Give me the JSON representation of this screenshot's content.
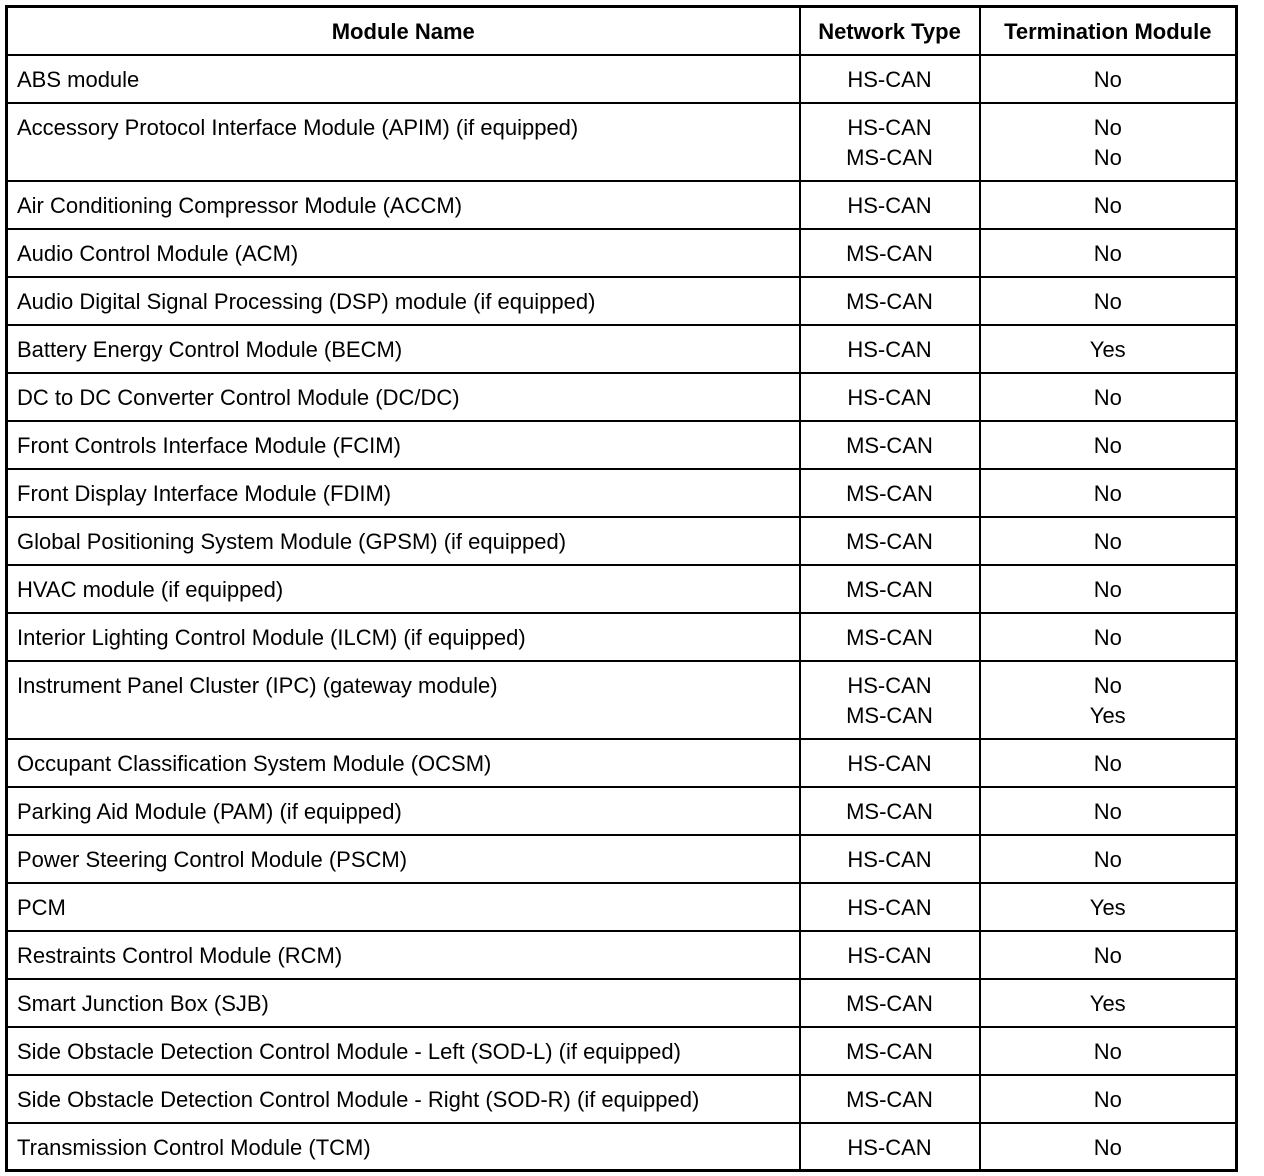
{
  "table": {
    "header": [
      "Module Name",
      "Network Type",
      "Termination Module"
    ],
    "rows": [
      [
        "ABS module",
        [
          "HS-CAN"
        ],
        [
          "No"
        ]
      ],
      [
        "Accessory Protocol Interface Module (APIM) (if equipped)",
        [
          "HS-CAN",
          "MS-CAN"
        ],
        [
          "No",
          "No"
        ]
      ],
      [
        "Air Conditioning Compressor Module (ACCM)",
        [
          "HS-CAN"
        ],
        [
          "No"
        ]
      ],
      [
        "Audio Control Module (ACM)",
        [
          "MS-CAN"
        ],
        [
          "No"
        ]
      ],
      [
        "Audio Digital Signal Processing (DSP) module (if equipped)",
        [
          "MS-CAN"
        ],
        [
          "No"
        ]
      ],
      [
        "Battery Energy Control Module (BECM)",
        [
          "HS-CAN"
        ],
        [
          "Yes"
        ]
      ],
      [
        "DC to DC Converter Control Module (DC/DC)",
        [
          "HS-CAN"
        ],
        [
          "No"
        ]
      ],
      [
        "Front Controls Interface Module (FCIM)",
        [
          "MS-CAN"
        ],
        [
          "No"
        ]
      ],
      [
        "Front Display Interface Module (FDIM)",
        [
          "MS-CAN"
        ],
        [
          "No"
        ]
      ],
      [
        "Global Positioning System Module (GPSM) (if equipped)",
        [
          "MS-CAN"
        ],
        [
          "No"
        ]
      ],
      [
        "HVAC module (if equipped)",
        [
          "MS-CAN"
        ],
        [
          "No"
        ]
      ],
      [
        "Interior Lighting Control Module (ILCM) (if equipped)",
        [
          "MS-CAN"
        ],
        [
          "No"
        ]
      ],
      [
        "Instrument Panel Cluster (IPC) (gateway module)",
        [
          "HS-CAN",
          "MS-CAN"
        ],
        [
          "No",
          "Yes"
        ]
      ],
      [
        "Occupant Classification System Module (OCSM)",
        [
          "HS-CAN"
        ],
        [
          "No"
        ]
      ],
      [
        "Parking Aid Module (PAM) (if equipped)",
        [
          "MS-CAN"
        ],
        [
          "No"
        ]
      ],
      [
        "Power Steering Control Module (PSCM)",
        [
          "HS-CAN"
        ],
        [
          "No"
        ]
      ],
      [
        "PCM",
        [
          "HS-CAN"
        ],
        [
          "Yes"
        ]
      ],
      [
        "Restraints Control Module (RCM)",
        [
          "HS-CAN"
        ],
        [
          "No"
        ]
      ],
      [
        "Smart Junction Box (SJB)",
        [
          "MS-CAN"
        ],
        [
          "Yes"
        ]
      ],
      [
        "Side Obstacle Detection Control Module - Left (SOD-L) (if equipped)",
        [
          "MS-CAN"
        ],
        [
          "No"
        ]
      ],
      [
        "Side Obstacle Detection Control Module - Right (SOD-R) (if equipped)",
        [
          "MS-CAN"
        ],
        [
          "No"
        ]
      ],
      [
        "Transmission Control Module (TCM)",
        [
          "HS-CAN"
        ],
        [
          "No"
        ]
      ]
    ]
  }
}
